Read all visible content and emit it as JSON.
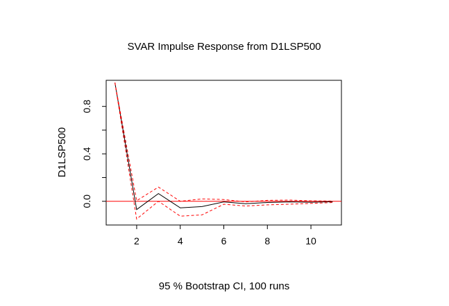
{
  "chart_data": {
    "type": "line",
    "title": "SVAR Impulse Response from D1LSP500",
    "xlabel": "95 % Bootstrap CI,  100 runs",
    "ylabel": "D1LSP500",
    "xlim": [
      0.6,
      11.4
    ],
    "ylim": [
      -0.2,
      1.02
    ],
    "xticks": [
      2,
      4,
      6,
      8,
      10
    ],
    "xtick_labels": [
      "2",
      "4",
      "6",
      "8",
      "10"
    ],
    "yticks": [
      0.0,
      0.4,
      0.8
    ],
    "ytick_labels": [
      "0.0",
      "0.4",
      "0.8"
    ],
    "yminor": [
      0.2,
      0.6
    ],
    "x": [
      1,
      2,
      3,
      4,
      5,
      6,
      7,
      8,
      9,
      10,
      11
    ],
    "series": [
      {
        "role": "response",
        "style": "solid",
        "color": "#000000",
        "values": [
          1.0,
          -0.07,
          0.065,
          -0.055,
          -0.045,
          -0.005,
          -0.02,
          -0.01,
          -0.005,
          -0.008,
          -0.004
        ]
      },
      {
        "role": "upper",
        "style": "dashed",
        "color": "#ff0000",
        "values": [
          1.0,
          0.005,
          0.12,
          0.0,
          0.02,
          0.015,
          -0.005,
          0.008,
          0.01,
          0.004,
          0.002
        ]
      },
      {
        "role": "lower",
        "style": "dashed",
        "color": "#ff0000",
        "values": [
          1.0,
          -0.15,
          0.0,
          -0.125,
          -0.115,
          -0.025,
          -0.04,
          -0.03,
          -0.025,
          -0.018,
          -0.01
        ]
      }
    ],
    "hline": {
      "y": 0,
      "color": "#ff0000"
    },
    "grid": false,
    "legend": "none"
  }
}
